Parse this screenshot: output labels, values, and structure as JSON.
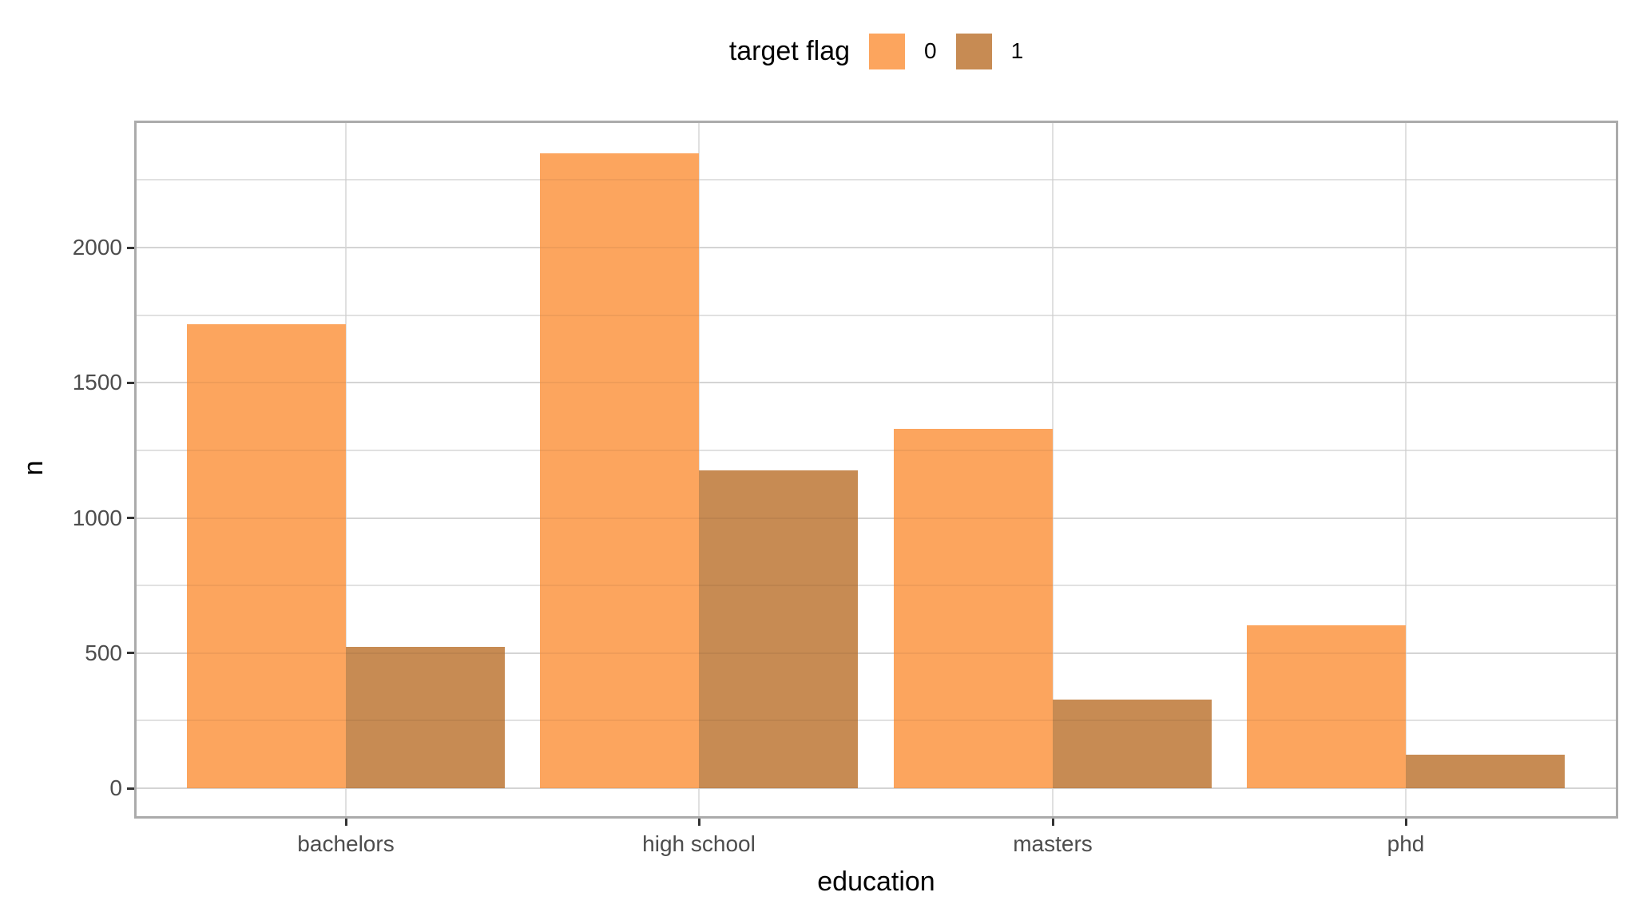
{
  "chart_data": {
    "type": "bar",
    "orientation": "vertical",
    "grouping": "dodged",
    "title": "",
    "xlabel": "education",
    "ylabel": "n",
    "legend_title": "target flag",
    "legend_position": "top-center",
    "categories": [
      "bachelors",
      "high school",
      "masters",
      "phd"
    ],
    "series": [
      {
        "name": "0",
        "color": "#FCA55E",
        "values": [
          1716,
          2349,
          1329,
          603
        ]
      },
      {
        "name": "1",
        "color": "#C78B53",
        "values": [
          523,
          1176,
          328,
          124
        ]
      }
    ],
    "y_ticks": [
      0,
      500,
      1000,
      1500,
      2000
    ],
    "y_minor_gridlines": [
      250,
      750,
      1250,
      1750,
      2250
    ],
    "ylim": [
      0,
      2470
    ],
    "grid": "horizontal major+minor, vertical major at category centers",
    "panel_border": true
  },
  "style": {
    "bar_fill_flag0": "#FCA55E",
    "bar_fill_flag1": "#C78B53",
    "panel_border_color": "#ABABAB",
    "grid_major_color": "#E0E0E0",
    "grid_minor_color": "#EEEEEE",
    "tick_mark_color": "#333333",
    "axis_text_color": "#4D4D4D",
    "axis_title_color": "#000000",
    "background_color": "#FFFFFF"
  }
}
